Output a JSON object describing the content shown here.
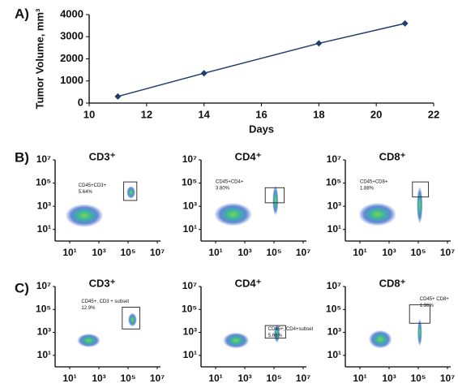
{
  "panel_labels": [
    "A)",
    "B)",
    "C)"
  ],
  "chart_data": [
    {
      "type": "line",
      "x_label": "Days",
      "y_label": "Tumor Volume, mm³",
      "x": [
        11,
        14,
        18,
        21
      ],
      "values": [
        300,
        1350,
        2700,
        3600
      ],
      "color": "#1f3d6b",
      "xlim": [
        10,
        22
      ],
      "xticks": [
        10,
        12,
        14,
        16,
        18,
        20,
        22
      ],
      "ylim": [
        0,
        4000
      ],
      "yticks": [
        0,
        1000,
        2000,
        3000,
        4000
      ]
    },
    {
      "type": "scatter",
      "title": "CD3⁺",
      "annotation": [
        "CD45+CD3+",
        "5.64%"
      ],
      "xscale": "log",
      "yscale": "log",
      "xlim": [
        1,
        10000000
      ],
      "ylim": [
        1,
        10000000
      ],
      "xticks": [
        {
          "value": 10,
          "label": "10¹"
        },
        {
          "value": 1000,
          "label": "10³"
        },
        {
          "value": 100000,
          "label": "10⁵"
        },
        {
          "value": 10000000,
          "label": "10⁷"
        }
      ],
      "yticks": [
        {
          "value": 10,
          "label": "10¹"
        },
        {
          "value": 1000,
          "label": "10³"
        },
        {
          "value": 100000,
          "label": "10⁵"
        },
        {
          "value": 10000000,
          "label": "10⁷"
        }
      ]
    },
    {
      "type": "scatter",
      "title": "CD4⁺",
      "annotation": [
        "CD45+CD4+",
        "3.80%"
      ],
      "xscale": "log",
      "yscale": "log",
      "xlim": [
        1,
        10000000
      ],
      "ylim": [
        1,
        10000000
      ],
      "xticks": [
        {
          "value": 10,
          "label": "10¹"
        },
        {
          "value": 1000,
          "label": "10³"
        },
        {
          "value": 100000,
          "label": "10⁵"
        },
        {
          "value": 10000000,
          "label": "10⁷"
        }
      ],
      "yticks": [
        {
          "value": 10,
          "label": "10¹"
        },
        {
          "value": 1000,
          "label": "10³"
        },
        {
          "value": 100000,
          "label": "10⁵"
        },
        {
          "value": 10000000,
          "label": "10⁷"
        }
      ]
    },
    {
      "type": "scatter",
      "title": "CD8⁺",
      "annotation": [
        "CD45+CD8+",
        "1.88%"
      ],
      "xscale": "log",
      "yscale": "log",
      "xlim": [
        1,
        10000000
      ],
      "ylim": [
        1,
        10000000
      ],
      "xticks": [
        {
          "value": 10,
          "label": "10¹"
        },
        {
          "value": 1000,
          "label": "10³"
        },
        {
          "value": 100000,
          "label": "10⁵"
        },
        {
          "value": 10000000,
          "label": "10⁷"
        }
      ],
      "yticks": [
        {
          "value": 10,
          "label": "10¹"
        },
        {
          "value": 1000,
          "label": "10³"
        },
        {
          "value": 100000,
          "label": "10⁵"
        },
        {
          "value": 10000000,
          "label": "10⁷"
        }
      ]
    },
    {
      "type": "scatter",
      "title": "CD3⁺",
      "annotation": [
        "CD45+, CD3 + subset",
        "12.9%"
      ],
      "xscale": "log",
      "yscale": "log",
      "xlim": [
        1,
        10000000
      ],
      "ylim": [
        1,
        10000000
      ],
      "xticks": [
        {
          "value": 10,
          "label": "10¹"
        },
        {
          "value": 1000,
          "label": "10³"
        },
        {
          "value": 100000,
          "label": "10⁵"
        },
        {
          "value": 10000000,
          "label": "10⁷"
        }
      ],
      "yticks": [
        {
          "value": 10,
          "label": "10¹"
        },
        {
          "value": 1000,
          "label": "10³"
        },
        {
          "value": 100000,
          "label": "10⁵"
        },
        {
          "value": 10000000,
          "label": "10⁷"
        }
      ]
    },
    {
      "type": "scatter",
      "title": "CD4⁺",
      "annotation": [
        "CD45+, CD4+subset",
        "5.66%"
      ],
      "xscale": "log",
      "yscale": "log",
      "xlim": [
        1,
        10000000
      ],
      "ylim": [
        1,
        10000000
      ],
      "xticks": [
        {
          "value": 10,
          "label": "10¹"
        },
        {
          "value": 1000,
          "label": "10³"
        },
        {
          "value": 100000,
          "label": "10⁵"
        },
        {
          "value": 10000000,
          "label": "10⁷"
        }
      ],
      "yticks": [
        {
          "value": 10,
          "label": "10¹"
        },
        {
          "value": 1000,
          "label": "10³"
        },
        {
          "value": 100000,
          "label": "10⁵"
        },
        {
          "value": 10000000,
          "label": "10⁷"
        }
      ]
    },
    {
      "type": "scatter",
      "title": "CD8⁺",
      "annotation": [
        "CD45+ CD8+",
        "1.96%"
      ],
      "xscale": "log",
      "yscale": "log",
      "xlim": [
        1,
        10000000
      ],
      "ylim": [
        1,
        10000000
      ],
      "xticks": [
        {
          "value": 10,
          "label": "10¹"
        },
        {
          "value": 1000,
          "label": "10³"
        },
        {
          "value": 100000,
          "label": "10⁵"
        },
        {
          "value": 10000000,
          "label": "10⁷"
        }
      ],
      "yticks": [
        {
          "value": 10,
          "label": "10¹"
        },
        {
          "value": 1000,
          "label": "10³"
        },
        {
          "value": 100000,
          "label": "10⁵"
        },
        {
          "value": 10000000,
          "label": "10⁷"
        }
      ]
    }
  ]
}
